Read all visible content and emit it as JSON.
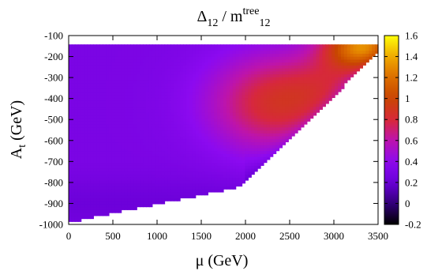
{
  "chart_data": {
    "type": "heatmap",
    "title": "Δ12 / mtree12",
    "title_parts": {
      "prefix": "Δ",
      "sub1": "12",
      "middle": " / m",
      "sup": "tree",
      "sub2": "12"
    },
    "xlabel": "μ (GeV)",
    "ylabel": "At (GeV)",
    "ylabel_parts": {
      "main": "A",
      "sub": "t",
      "rest": " (GeV)"
    },
    "xlim": [
      0,
      3500
    ],
    "ylim": [
      -1000,
      -100
    ],
    "x_ticks": [
      0,
      500,
      1000,
      1500,
      2000,
      2500,
      3000,
      3500
    ],
    "x_tick_labels": [
      "0",
      "500",
      "1000",
      "1500",
      "2000",
      "2500",
      "3000",
      "3500"
    ],
    "y_ticks": [
      -100,
      -200,
      -300,
      -400,
      -500,
      -600,
      -700,
      -800,
      -900,
      -1000
    ],
    "y_tick_labels": [
      "-100",
      "-200",
      "-300",
      "-400",
      "-500",
      "-600",
      "-700",
      "-800",
      "-900",
      "-1000"
    ],
    "colorbar": {
      "range": [
        -0.2,
        1.6
      ],
      "ticks": [
        -0.2,
        0,
        0.2,
        0.4,
        0.6,
        0.8,
        1,
        1.2,
        1.4,
        1.6
      ],
      "tick_labels": [
        "-0.2",
        "0",
        "0.2",
        "0.4",
        "0.6",
        "0.8",
        "1",
        "1.2",
        "1.4",
        "1.6"
      ],
      "palette": "black-purple-red-orange-yellow"
    },
    "data_extent_At_top": -140,
    "valid_region_boundary": {
      "description": "lower edge of the filled region",
      "mu": [
        0,
        1950,
        3500
      ],
      "At_min": [
        -990,
        -820,
        -180
      ]
    },
    "value_peaks": [
      {
        "mu": 3350,
        "At": -150,
        "value": 1.6
      },
      {
        "mu": 2350,
        "At": -420,
        "value": 0.85
      },
      {
        "mu": 0,
        "At": -500,
        "value": 0.3
      }
    ]
  }
}
